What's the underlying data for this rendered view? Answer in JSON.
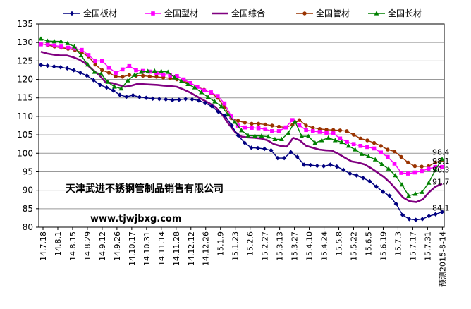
{
  "chart_data": {
    "type": "line",
    "title": "",
    "xlabel": "",
    "ylabel": "",
    "ylim": [
      80,
      135
    ],
    "yticks": [
      80,
      85,
      90,
      95,
      100,
      105,
      110,
      115,
      120,
      125,
      130,
      135
    ],
    "grid": true,
    "legend": "top",
    "x_tick_labels": [
      "14.7.18",
      "14.8.1",
      "14.8.15",
      "14.8.29",
      "14.9.12",
      "14.9.26",
      "14.10.17",
      "14.10.31",
      "14.11.14",
      "14.11.28",
      "14.12.12",
      "14.12.26",
      "15.1.9",
      "15.1.23",
      "15.2.6",
      "15.2.27",
      "15.3.13",
      "15.3.27",
      "15.4.10",
      "15.4.24",
      "15.5.8",
      "15.5.22",
      "15.6.5",
      "15.6.19",
      "15.7.3",
      "15.7.17",
      "15.7.31",
      "预测2015-8-14"
    ],
    "series": [
      {
        "name": "全国板材",
        "color": "#000080",
        "marker": "diamond",
        "end_label": "84.1",
        "values": [
          123.9,
          123.7,
          123.5,
          123.3,
          123.0,
          122.5,
          121.8,
          121.0,
          119.8,
          118.5,
          117.8,
          117.0,
          115.8,
          115.3,
          115.7,
          115.2,
          115.0,
          114.8,
          114.7,
          114.6,
          114.4,
          114.5,
          114.7,
          114.6,
          114.3,
          113.6,
          112.7,
          111.2,
          110.2,
          107.5,
          104.8,
          102.8,
          101.5,
          101.4,
          101.2,
          100.8,
          98.7,
          98.7,
          100.3,
          99.0,
          96.9,
          96.8,
          96.6,
          96.5,
          96.9,
          96.4,
          95.5,
          94.5,
          94.0,
          93.3,
          92.4,
          91.0,
          89.6,
          88.5,
          86.3,
          83.3,
          82.2,
          82.0,
          82.2,
          83.0,
          83.5,
          84.1
        ]
      },
      {
        "name": "全国型材",
        "color": "#ff00ff",
        "marker": "square",
        "end_label": "96.3",
        "values": [
          129.5,
          129.5,
          129.2,
          128.9,
          128.6,
          128.4,
          128.0,
          126.6,
          125.0,
          125.0,
          123.2,
          121.8,
          122.7,
          123.6,
          122.5,
          122.3,
          122.1,
          121.6,
          121.3,
          121.1,
          120.9,
          120.0,
          119.0,
          118.0,
          117.0,
          116.5,
          115.5,
          113.5,
          110.0,
          107.5,
          107.0,
          106.9,
          106.8,
          106.5,
          106.0,
          106.0,
          107.0,
          109.0,
          107.6,
          106.3,
          106.0,
          105.8,
          105.5,
          105.4,
          104.0,
          103.1,
          102.5,
          102.0,
          101.7,
          101.3,
          100.2,
          99.0,
          97.2,
          94.7,
          94.5,
          94.8,
          95.2,
          95.8,
          96.3,
          96.3
        ]
      },
      {
        "name": "全国综合",
        "color": "#800080",
        "marker": "none",
        "end_label": "91.7",
        "values": [
          127.5,
          127.0,
          126.7,
          126.5,
          126.5,
          126.0,
          125.3,
          124.2,
          122.6,
          121.2,
          119.2,
          119.0,
          118.5,
          118.0,
          118.3,
          118.8,
          118.7,
          118.6,
          118.5,
          118.3,
          118.2,
          118.0,
          117.3,
          116.5,
          115.5,
          114.5,
          113.6,
          112.5,
          110.5,
          108.0,
          105.8,
          104.5,
          104.3,
          104.2,
          104.0,
          103.5,
          102.5,
          102.0,
          101.8,
          104.2,
          103.5,
          102.0,
          101.5,
          101.0,
          100.8,
          100.7,
          99.8,
          98.8,
          97.8,
          97.5,
          97.0,
          96.0,
          94.8,
          93.6,
          92.0,
          90.0,
          88.0,
          87.0,
          86.8,
          87.5,
          89.5,
          91.0,
          91.7
        ]
      },
      {
        "name": "全国管材",
        "color": "#993300",
        "marker": "circle",
        "end_label": "98.1",
        "values": [
          129.7,
          129.3,
          128.9,
          128.6,
          128.3,
          128.0,
          127.3,
          126.2,
          124.0,
          122.5,
          121.8,
          120.8,
          120.7,
          121.2,
          121.0,
          121.0,
          120.8,
          120.7,
          120.5,
          120.3,
          120.0,
          119.5,
          118.9,
          118.0,
          117.2,
          116.3,
          115.0,
          112.5,
          109.5,
          108.8,
          108.3,
          108.0,
          108.0,
          107.8,
          107.5,
          107.2,
          107.0,
          107.7,
          109.0,
          107.5,
          106.9,
          106.6,
          106.4,
          106.3,
          106.2,
          106.0,
          105.0,
          104.0,
          103.5,
          102.8,
          102.0,
          101.0,
          100.5,
          99.0,
          97.5,
          96.5,
          96.4,
          96.5,
          97.5,
          98.1
        ]
      },
      {
        "name": "全国长材",
        "color": "#008000",
        "marker": "triangle",
        "end_label": "98.4",
        "values": [
          131.0,
          130.4,
          130.3,
          130.3,
          129.8,
          128.9,
          126.5,
          124.0,
          122.0,
          121.5,
          119.3,
          118.0,
          117.5,
          119.7,
          121.2,
          122.0,
          122.2,
          122.3,
          122.2,
          122.0,
          120.5,
          119.5,
          118.7,
          117.8,
          116.5,
          115.2,
          114.0,
          112.7,
          110.5,
          108.5,
          106.2,
          104.8,
          104.7,
          104.7,
          104.5,
          103.8,
          103.8,
          105.5,
          108.6,
          104.6,
          104.6,
          102.8,
          103.5,
          104.2,
          103.5,
          103.0,
          102.0,
          101.0,
          99.8,
          99.2,
          98.3,
          97.0,
          95.8,
          94.0,
          91.5,
          88.5,
          89.0,
          89.5,
          92.0,
          95.5,
          98.4
        ]
      }
    ]
  },
  "watermark": {
    "company": "天津武进不锈钢管制品销售有限公司",
    "url": "www.tjwjbxg.com"
  },
  "colors": {
    "gridline": "#999999",
    "plot_border": "#000000",
    "background": "#ffffff"
  }
}
